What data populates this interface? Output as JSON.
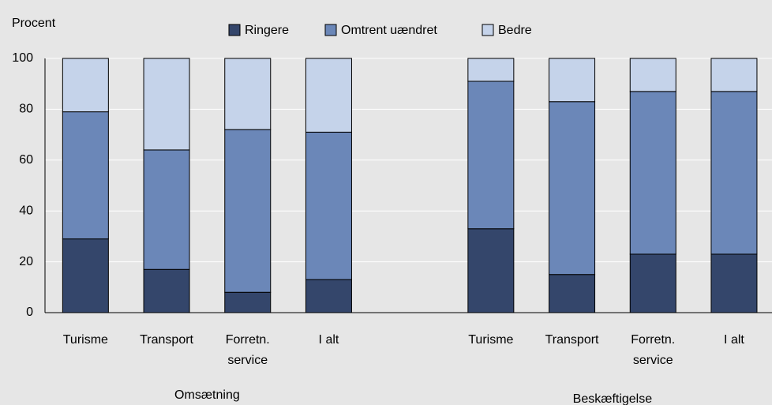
{
  "chart_data": {
    "type": "stacked_bar",
    "y_label": "Procent",
    "categories": [
      "Turisme",
      "Transport",
      "Forretn.\nservice",
      "I alt",
      null,
      "Turisme",
      "Transport",
      "Forretn.\nservice",
      "I alt"
    ],
    "groups": [
      "Omsætning",
      "Beskæftigelse"
    ],
    "series": [
      {
        "name": "Ringere",
        "color": "#34466b",
        "values": [
          29,
          17,
          8,
          13,
          null,
          33,
          15,
          23,
          23
        ]
      },
      {
        "name": "Omtrent uændret",
        "color": "#6b87b8",
        "values": [
          50,
          47,
          64,
          58,
          null,
          58,
          68,
          64,
          64
        ]
      },
      {
        "name": "Bedre",
        "color": "#c5d3ea",
        "values": [
          21,
          36,
          28,
          29,
          null,
          9,
          17,
          13,
          13
        ]
      }
    ],
    "ylim": [
      0,
      100
    ],
    "yticks": [
      0,
      20,
      40,
      60,
      80,
      100
    ],
    "grid": true
  }
}
